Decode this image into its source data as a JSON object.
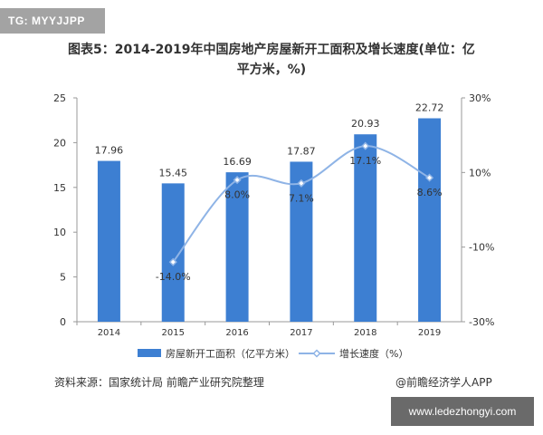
{
  "tag": "TG: MYYJJPP",
  "title": "图表5：2014-2019年中国房地产房屋新开工面积及增长速度(单位：亿平方米，%)",
  "chart_data": {
    "type": "bar",
    "categories": [
      "2014",
      "2015",
      "2016",
      "2017",
      "2018",
      "2019"
    ],
    "series": [
      {
        "name": "房屋新开工面积（亿平方米）",
        "type": "bar",
        "axis": "left",
        "values": [
          17.96,
          15.45,
          16.69,
          17.87,
          20.93,
          22.72
        ],
        "labels": [
          "17.96",
          "15.45",
          "16.69",
          "17.87",
          "20.93",
          "22.72"
        ],
        "color": "#3d7fd2"
      },
      {
        "name": "增长速度（%）",
        "type": "line",
        "axis": "right",
        "values": [
          null,
          -14.0,
          8.0,
          7.1,
          17.1,
          8.6
        ],
        "labels": [
          "",
          "-14.0%",
          "8.0%",
          "7.1%",
          "17.1%",
          "8.6%"
        ],
        "color": "#8fb4e6"
      }
    ],
    "yleft": {
      "range": [
        0,
        25
      ],
      "ticks": [
        "0",
        "5",
        "10",
        "15",
        "20",
        "25"
      ]
    },
    "yright": {
      "range": [
        -30,
        30
      ],
      "ticks": [
        "-30%",
        "-10%",
        "10%",
        "30%"
      ]
    },
    "legend": "bottom"
  },
  "source": "资料来源：国家统计局 前瞻产业研究院整理",
  "credit": "@前瞻经济学人APP",
  "watermark": "www.ledezhongyi.com"
}
